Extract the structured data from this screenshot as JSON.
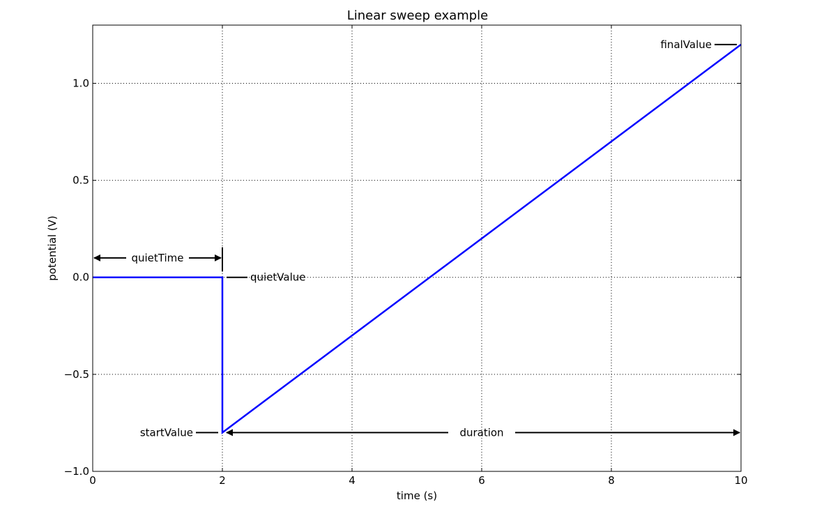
{
  "chart_data": {
    "type": "line",
    "title": "Linear sweep example",
    "xlabel": "time (s)",
    "ylabel": "potential (V)",
    "xlim": [
      0,
      10
    ],
    "ylim": [
      -1.0,
      1.3
    ],
    "xticks": [
      0,
      2,
      4,
      6,
      8,
      10
    ],
    "xtick_labels": [
      "0",
      "2",
      "4",
      "6",
      "8",
      "10"
    ],
    "yticks": [
      -1.0,
      -0.5,
      0.0,
      0.5,
      1.0
    ],
    "ytick_labels": [
      "−1.0",
      "−0.5",
      "0.0",
      "0.5",
      "1.0"
    ],
    "grid": true,
    "grid_style": "dotted",
    "series": [
      {
        "color": "#0000ff",
        "x": [
          0,
          2,
          2,
          10
        ],
        "y": [
          0,
          0,
          -0.8,
          1.2
        ]
      }
    ],
    "parameters": {
      "quietTime": 2,
      "quietValue": 0,
      "startValue": -0.8,
      "finalValue": 1.2,
      "duration": 8
    },
    "annotations": {
      "quietTime": "quietTime",
      "quietValue": "quietValue",
      "startValue": "startValue",
      "finalValue": "finalValue",
      "duration": "duration"
    }
  }
}
